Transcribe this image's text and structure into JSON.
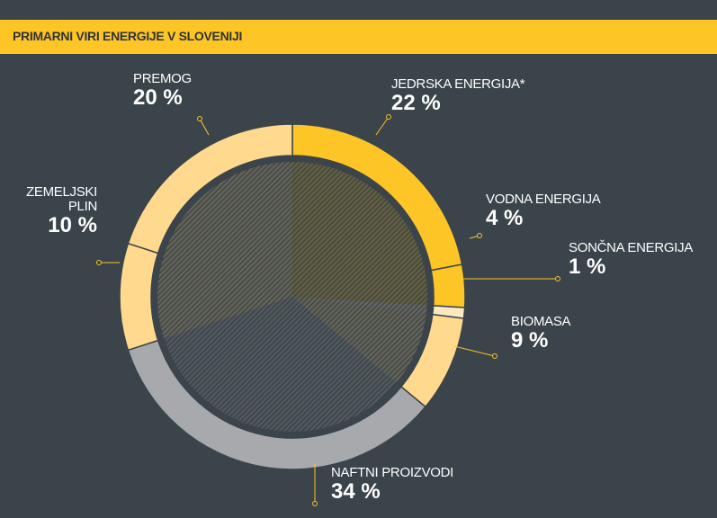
{
  "chart_data": {
    "type": "donut",
    "title": "PRIMARNI VIRI ENERGIJE V SLOVENIJI",
    "categories": [
      "JEDRSKA ENERGIJA*",
      "VODNA ENERGIJA",
      "SONČNA ENERGIJA",
      "BIOMASA",
      "NAFTNI PROIZVODI",
      "ZEMELJSKI PLIN",
      "PREMOG"
    ],
    "values": [
      22,
      4,
      1,
      9,
      34,
      10,
      20
    ],
    "value_labels": [
      "22 %",
      "4 %",
      "1 %",
      "9 %",
      "34 %",
      "10 %",
      "20 %"
    ],
    "colors": [
      "#fdc526",
      "#fdc526",
      "#fbe9c4",
      "#fed98e",
      "#a7a9ac",
      "#fed98e",
      "#fed98e"
    ]
  }
}
